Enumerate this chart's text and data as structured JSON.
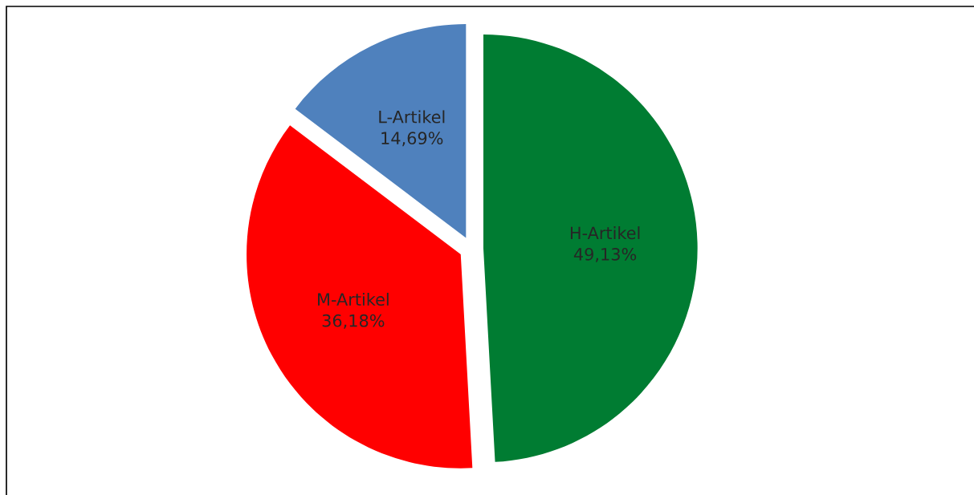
{
  "chart_data": {
    "type": "pie",
    "categories": [
      "H-Artikel",
      "M-Artikel",
      "L-Artikel"
    ],
    "values": [
      49.13,
      36.18,
      14.69
    ],
    "colors": [
      "#007c32",
      "#ff0000",
      "#4f81bd"
    ],
    "value_labels": [
      "49,13%",
      "36,18%",
      "14,69%"
    ],
    "legend": false
  }
}
